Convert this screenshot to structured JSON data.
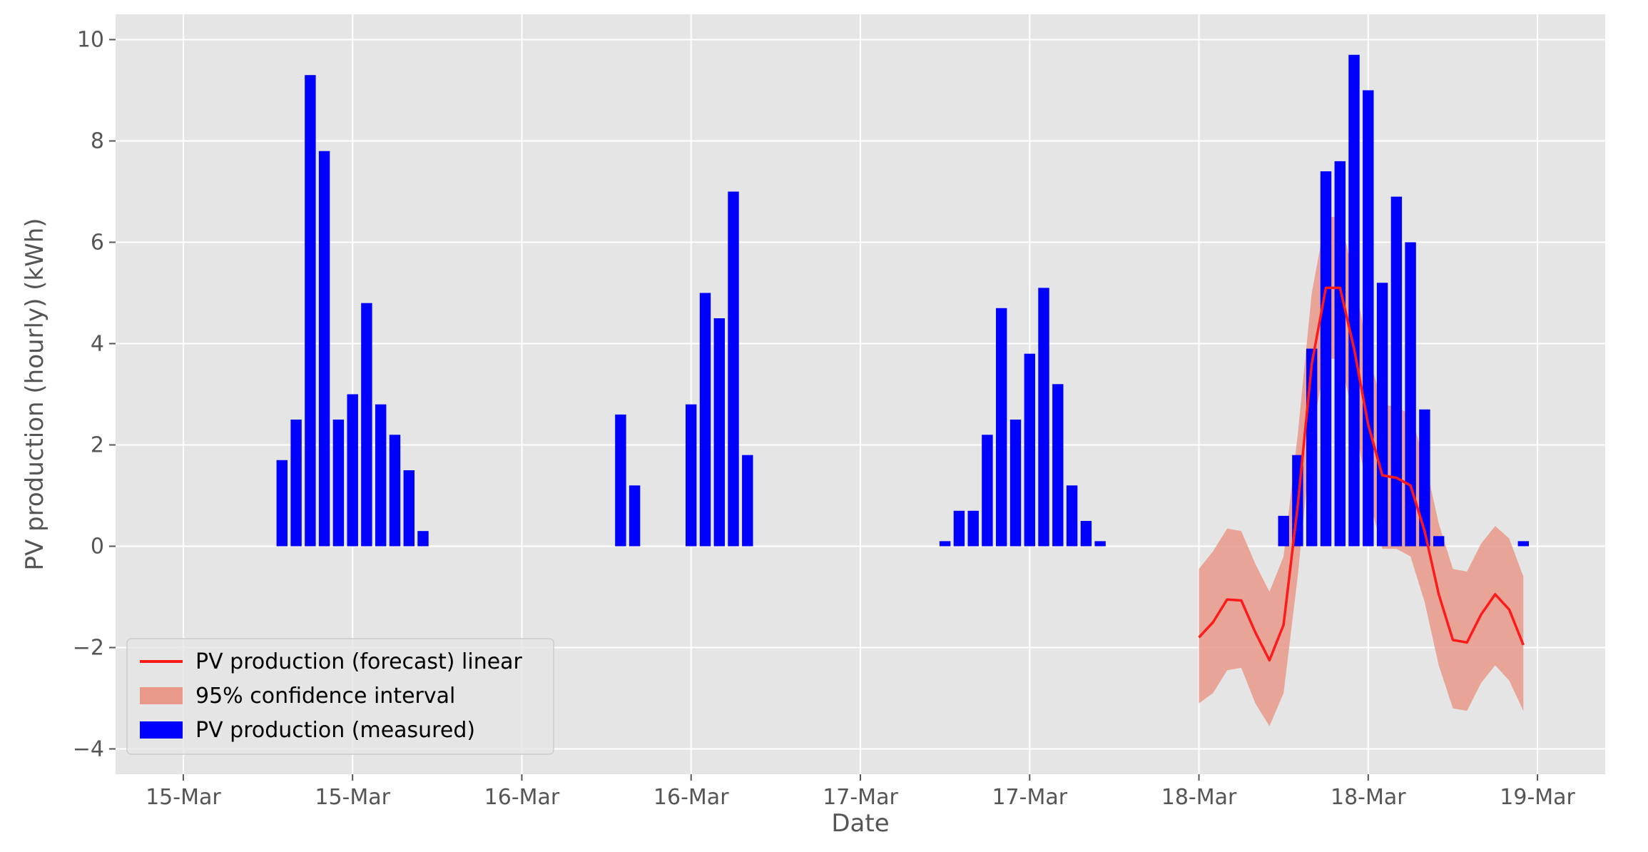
{
  "chart_data": {
    "type": "bar",
    "xlabel": "Date",
    "ylabel": "PV production (hourly) (kWh)",
    "ylim": [
      -4.5,
      10.5
    ],
    "y_ticks": [
      -4,
      -2,
      0,
      2,
      4,
      6,
      8,
      10
    ],
    "x_tick_labels": [
      {
        "hour": 0,
        "label": "15-Mar"
      },
      {
        "hour": 12,
        "label": "15-Mar"
      },
      {
        "hour": 24,
        "label": "16-Mar"
      },
      {
        "hour": 36,
        "label": "16-Mar"
      },
      {
        "hour": 48,
        "label": "17-Mar"
      },
      {
        "hour": 60,
        "label": "17-Mar"
      },
      {
        "hour": 72,
        "label": "18-Mar"
      },
      {
        "hour": 84,
        "label": "18-Mar"
      },
      {
        "hour": 96,
        "label": "19-Mar"
      }
    ],
    "grid": true,
    "legend_position": "lower-left",
    "legend": [
      {
        "label": "PV production (forecast) linear",
        "kind": "line",
        "color": "#ff1a1a"
      },
      {
        "label": "95% confidence interval",
        "kind": "band",
        "color": "#e8998a"
      },
      {
        "label": "PV production (measured)",
        "kind": "bar",
        "color": "#0000ff"
      }
    ],
    "series": [
      {
        "name": "PV production (measured)",
        "kind": "bar",
        "color": "#0000ff",
        "hours": [
          7,
          8,
          9,
          10,
          11,
          12,
          13,
          14,
          15,
          16,
          17,
          31,
          32,
          36,
          37,
          38,
          39,
          40,
          54,
          55,
          56,
          57,
          58,
          59,
          60,
          61,
          62,
          63,
          64,
          65,
          78,
          79,
          80,
          81,
          82,
          83,
          84,
          85,
          86,
          87,
          88,
          89,
          90,
          91,
          95
        ],
        "values": [
          1.7,
          2.5,
          9.3,
          7.8,
          2.5,
          3.0,
          4.8,
          2.8,
          2.2,
          1.5,
          0.3,
          2.6,
          1.2,
          2.8,
          5.0,
          4.5,
          7.0,
          1.8,
          0.1,
          0.7,
          0.7,
          2.2,
          4.7,
          2.5,
          3.8,
          5.1,
          3.2,
          1.2,
          0.5,
          0.1,
          0.6,
          1.8,
          3.9,
          7.4,
          7.6,
          9.7,
          9.0,
          5.2,
          6.9,
          6.0,
          2.7,
          0.2,
          0.0,
          0.0,
          0.1
        ]
      },
      {
        "name": "PV production (forecast) linear",
        "kind": "line",
        "color": "#ff1a1a",
        "hours": [
          72,
          73,
          74,
          75,
          76,
          77,
          78,
          79,
          80,
          81,
          82,
          83,
          84,
          85,
          86,
          87,
          88,
          89,
          90,
          91,
          92,
          93,
          94,
          95
        ],
        "values": [
          -1.8,
          -1.5,
          -1.05,
          -1.07,
          -1.7,
          -2.25,
          -1.55,
          0.8,
          3.6,
          5.1,
          5.1,
          3.9,
          2.4,
          1.4,
          1.35,
          1.2,
          0.3,
          -0.95,
          -1.85,
          -1.9,
          -1.35,
          -0.95,
          -1.25,
          -1.95
        ],
        "ci_lower": [
          -3.1,
          -2.9,
          -2.45,
          -2.4,
          -3.1,
          -3.55,
          -2.9,
          -0.6,
          2.2,
          3.7,
          3.7,
          2.5,
          1.0,
          -0.05,
          -0.05,
          -0.2,
          -1.1,
          -2.35,
          -3.2,
          -3.25,
          -2.7,
          -2.35,
          -2.65,
          -3.25
        ],
        "ci_upper": [
          -0.45,
          -0.1,
          0.35,
          0.3,
          -0.35,
          -0.9,
          -0.2,
          2.2,
          5.0,
          6.5,
          6.5,
          5.3,
          3.8,
          2.8,
          2.75,
          2.6,
          1.7,
          0.45,
          -0.45,
          -0.5,
          0.05,
          0.4,
          0.15,
          -0.6
        ]
      }
    ]
  }
}
